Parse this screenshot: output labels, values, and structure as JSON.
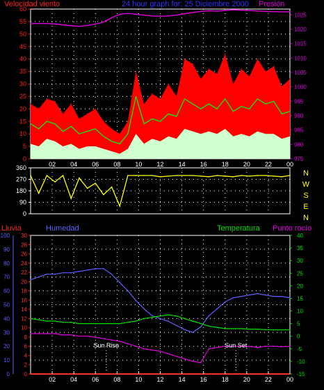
{
  "header": {
    "left_label": "Velocidad viento",
    "center_label": "24 hour graph for: 25 Diciembre 2000",
    "right_label": "Presión"
  },
  "colors": {
    "wind": "#ff2020",
    "gust_fill": "#ff0000",
    "avg_line": "#00ff00",
    "low_fill": "#d0ffd0",
    "pressure": "#e000e0",
    "direction": "#ffff00",
    "humidity": "#6060ff",
    "temperature": "#00e000",
    "dewpoint": "#e000e0",
    "rain": "#ff3030",
    "grid": "#ffffff"
  },
  "x_ticks": [
    "02",
    "04",
    "06",
    "08",
    "10",
    "12",
    "14",
    "16",
    "18",
    "20",
    "22",
    "00"
  ],
  "chart_data": [
    {
      "type": "area",
      "id": "wind_pressure",
      "ylim_left": [
        0,
        60
      ],
      "ylim_right": [
        975,
        1027
      ],
      "left_ticks": [
        "0",
        "5",
        "10",
        "15",
        "20",
        "25",
        "30",
        "35",
        "40",
        "45",
        "50",
        "55",
        "60"
      ],
      "right_ticks": [
        "975",
        "980",
        "985",
        "990",
        "995",
        "1000",
        "1005",
        "1010",
        "1015",
        "1020",
        "1025"
      ],
      "series": [
        {
          "name": "Velocidad viento",
          "values": [
            22,
            20,
            24,
            23,
            18,
            22,
            16,
            18,
            20,
            15,
            12,
            10,
            15,
            35,
            22,
            26,
            24,
            30,
            25,
            40,
            38,
            32,
            36,
            34,
            42,
            30,
            36,
            33,
            40,
            35,
            37,
            29,
            32
          ]
        },
        {
          "name": "Average",
          "values": [
            14,
            12,
            15,
            14,
            11,
            13,
            10,
            11,
            12,
            9,
            7,
            6,
            10,
            25,
            14,
            16,
            15,
            18,
            17,
            24,
            22,
            20,
            22,
            20,
            24,
            19,
            21,
            20,
            24,
            22,
            23,
            18,
            19
          ]
        },
        {
          "name": "Low",
          "values": [
            6,
            5,
            8,
            7,
            5,
            6,
            4,
            5,
            5,
            4,
            3,
            2,
            4,
            10,
            6,
            8,
            7,
            9,
            8,
            12,
            11,
            10,
            11,
            10,
            12,
            9,
            10,
            9,
            11,
            10,
            10,
            8,
            9
          ]
        },
        {
          "name": "Presión",
          "values": [
            1022,
            1022,
            1022,
            1021.8,
            1021.5,
            1021.2,
            1021,
            1021.3,
            1021.8,
            1022.5,
            1024,
            1025.2,
            1025.5,
            1025.2,
            1024.9,
            1024.6,
            1024.5,
            1024.6,
            1024.9,
            1025.4,
            1025.8,
            1026.2,
            1026.4,
            1026.3,
            1026.5,
            1026.7,
            1026.6,
            1026.5,
            1026.3,
            1026.2,
            1026.1,
            1026.0,
            1026.0
          ]
        }
      ]
    },
    {
      "type": "line",
      "id": "wind_direction",
      "ylim": [
        0,
        360
      ],
      "left_ticks": [
        "0",
        "90",
        "180",
        "270",
        "360"
      ],
      "right_labels": [
        "N",
        "W",
        "S",
        "E",
        "N"
      ],
      "series": [
        {
          "name": "Direction",
          "values": [
            300,
            160,
            300,
            250,
            300,
            120,
            280,
            200,
            240,
            150,
            210,
            60,
            300,
            300,
            300,
            300,
            290,
            295,
            300,
            300,
            300,
            295,
            290,
            300,
            295,
            290,
            300,
            295,
            300,
            300,
            295,
            290,
            300
          ]
        }
      ]
    },
    {
      "type": "line",
      "id": "humidity_temp",
      "left_label_1": "Lluvia",
      "left_label_2": "Humedad",
      "right_label_1": "Temperatura",
      "right_label_2": "Punto rocío",
      "ylim_humidity": [
        0,
        100
      ],
      "ylim_rain": [
        0,
        30
      ],
      "ylim_temp": [
        -15,
        40
      ],
      "humidity_ticks": [
        "0",
        "10",
        "20",
        "30",
        "40",
        "50",
        "60",
        "70",
        "80",
        "90",
        "100"
      ],
      "rain_ticks": [
        "0",
        "2",
        "4",
        "6",
        "8",
        "10",
        "12",
        "14",
        "16",
        "18",
        "20",
        "22",
        "24",
        "26",
        "28",
        "30"
      ],
      "temp_ticks": [
        "-15",
        "-10",
        "-5",
        "0",
        "5",
        "10",
        "15",
        "20",
        "25",
        "30",
        "35",
        "40"
      ],
      "annotations": [
        {
          "text": "Sun Rise",
          "x": 7
        },
        {
          "text": "Sun Set",
          "x": 19
        }
      ],
      "series": [
        {
          "name": "Humedad",
          "values": [
            68,
            70,
            72,
            72,
            73,
            73,
            74,
            75,
            76,
            76,
            72,
            66,
            60,
            53,
            47,
            42,
            40,
            38,
            35,
            32,
            30,
            34,
            42,
            47,
            52,
            55,
            56,
            57,
            58,
            57,
            56,
            56,
            55
          ]
        },
        {
          "name": "Temperatura",
          "values": [
            7,
            6.5,
            6,
            6,
            5.5,
            5.5,
            5,
            5,
            5,
            5,
            5,
            5,
            5.5,
            6,
            7,
            7.5,
            8,
            8.5,
            8,
            7,
            6,
            5,
            4,
            3.5,
            3,
            3,
            3,
            2.8,
            2.8,
            2.6,
            2.5,
            2.5,
            2.5
          ]
        },
        {
          "name": "Punto rocío",
          "values": [
            1,
            1,
            1,
            1,
            0.5,
            0.5,
            0,
            0,
            -0.5,
            -1,
            -1.5,
            -2,
            -3,
            -4,
            -5,
            -5.5,
            -6,
            -7,
            -8,
            -9,
            -10,
            -10.5,
            -5,
            -4.5,
            -4,
            -4,
            -4,
            -4,
            -4.5,
            -4,
            -4,
            -4.2,
            -4
          ]
        },
        {
          "name": "Lluvia",
          "values": [
            0,
            0,
            0,
            0,
            0,
            0,
            0,
            0,
            0,
            0,
            0,
            0,
            0,
            0,
            0,
            0,
            0,
            0,
            0,
            0,
            0,
            0,
            0,
            0,
            0,
            0,
            0,
            0,
            0,
            0,
            0,
            0,
            0
          ]
        }
      ]
    }
  ]
}
